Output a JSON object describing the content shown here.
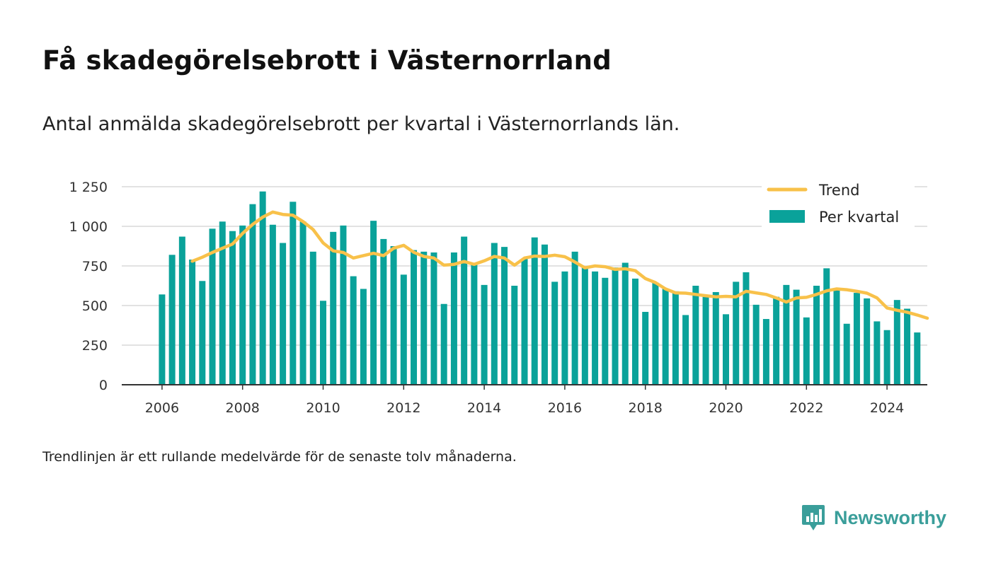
{
  "title": "Få skadegörelsebrott i Västernorrland",
  "subtitle": "Antal anmälda skadegörelsebrott per kvartal i Västernorrlands län.",
  "footnote": "Trendlinjen är ett rullande medelvärde för de senaste tolv månaderna.",
  "brand": "Newsworthy",
  "colors": {
    "bars": "#0aa29a",
    "trend": "#f8c14a",
    "brand": "#3a9e9a"
  },
  "chart_data": {
    "type": "bar",
    "x_axis": {
      "ticks": [
        "2006",
        "2008",
        "2010",
        "2012",
        "2014",
        "2016",
        "2018",
        "2020",
        "2022",
        "2024"
      ],
      "range": [
        2005,
        2025
      ]
    },
    "y_axis": {
      "ticks": [
        0,
        250,
        500,
        750,
        1000,
        1250
      ],
      "tick_labels": [
        "0",
        "250",
        "500",
        "750",
        "1 000",
        "1 250"
      ],
      "range": [
        0,
        1250
      ]
    },
    "grid": true,
    "legend": {
      "placement": "top-right",
      "entries": [
        "Trend",
        "Per kvartal"
      ]
    },
    "series": [
      {
        "name": "Per kvartal",
        "type": "bar",
        "start_quarter": "2006Q1",
        "values": [
          570,
          820,
          935,
          790,
          655,
          985,
          1030,
          970,
          1005,
          1140,
          1220,
          1010,
          895,
          1155,
          1030,
          840,
          530,
          965,
          1005,
          685,
          605,
          1035,
          920,
          875,
          695,
          850,
          840,
          835,
          510,
          835,
          935,
          770,
          630,
          895,
          870,
          625,
          795,
          930,
          885,
          650,
          715,
          840,
          740,
          715,
          675,
          740,
          770,
          670,
          460,
          645,
          605,
          590,
          440,
          625,
          555,
          585,
          445,
          650,
          710,
          505,
          415,
          555,
          630,
          600,
          425,
          625,
          735,
          605,
          385,
          580,
          545,
          400,
          345,
          535,
          480,
          330
        ]
      },
      {
        "name": "Trend",
        "type": "line",
        "start_quarter": "2006Q4",
        "values": [
          780,
          805,
          835,
          862,
          888,
          955,
          1012,
          1058,
          1090,
          1075,
          1070,
          1030,
          980,
          895,
          845,
          835,
          800,
          815,
          830,
          815,
          862,
          880,
          836,
          810,
          800,
          755,
          760,
          778,
          760,
          782,
          810,
          800,
          755,
          800,
          812,
          810,
          818,
          808,
          775,
          738,
          750,
          745,
          728,
          732,
          720,
          670,
          645,
          605,
          580,
          578,
          570,
          562,
          555,
          558,
          555,
          590,
          580,
          570,
          548,
          522,
          548,
          552,
          570,
          593,
          605,
          600,
          590,
          578,
          548,
          485,
          470,
          458,
          440,
          420
        ]
      }
    ]
  }
}
